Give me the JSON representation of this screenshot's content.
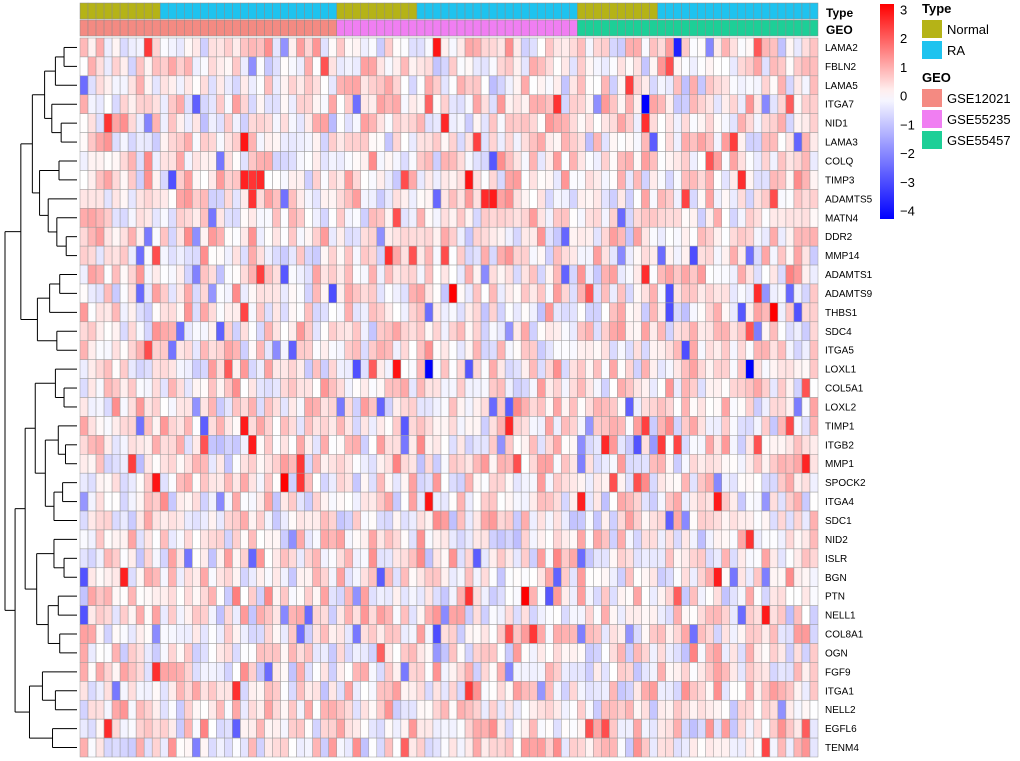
{
  "chart_data": {
    "type": "heatmap",
    "title": "",
    "n_samples": 92,
    "rows": [
      "LAMA2",
      "FBLN2",
      "LAMA5",
      "ITGA7",
      "NID1",
      "LAMA3",
      "COLQ",
      "TIMP3",
      "ADAMTS5",
      "MATN4",
      "DDR2",
      "MMP14",
      "ADAMTS1",
      "ADAMTS9",
      "THBS1",
      "SDC4",
      "ITGA5",
      "LOXL1",
      "COL5A1",
      "LOXL2",
      "TIMP1",
      "ITGB2",
      "MMP1",
      "SPOCK2",
      "ITGA4",
      "SDC1",
      "NID2",
      "ISLR",
      "BGN",
      "PTN",
      "NELL1",
      "COL8A1",
      "OGN",
      "FGF9",
      "ITGA1",
      "NELL2",
      "EGFL6",
      "TENM4"
    ],
    "annotations": {
      "type": {
        "title": "Type",
        "segments": [
          {
            "label": "Normal",
            "count": 10
          },
          {
            "label": "RA",
            "count": 22
          },
          {
            "label": "Normal",
            "count": 10
          },
          {
            "label": "RA",
            "count": 20
          },
          {
            "label": "Normal",
            "count": 10
          },
          {
            "label": "RA",
            "count": 20
          }
        ]
      },
      "geo": {
        "title": "GEO",
        "segments": [
          {
            "label": "GSE12021",
            "count": 32
          },
          {
            "label": "GSE55235",
            "count": 30
          },
          {
            "label": "GSE55457",
            "count": 30
          }
        ]
      }
    },
    "color_scale": {
      "min": -4,
      "max": 3,
      "ticks": [
        3,
        2,
        1,
        0,
        -1,
        -2,
        -3,
        -4
      ],
      "tick_labels": [
        "3",
        "2",
        "1",
        "0",
        "−1",
        "−2",
        "−3",
        "−4"
      ],
      "low_color": "#0000ff",
      "mid_color": "#ffffff",
      "high_color": "#ff0000"
    },
    "legends": {
      "type": {
        "title": "Type",
        "items": [
          {
            "label": "Normal",
            "color": "#b5b317"
          },
          {
            "label": "RA",
            "color": "#1ec3ef"
          }
        ]
      },
      "geo": {
        "title": "GEO",
        "items": [
          {
            "label": "GSE12021",
            "color": "#f48a82"
          },
          {
            "label": "GSE55235",
            "color": "#f07ef2"
          },
          {
            "label": "GSE55457",
            "color": "#1dcf97"
          }
        ]
      }
    },
    "dendrogram": "hierarchical clustering of rows (genes)",
    "notable_values": [
      {
        "row": "ITGA7",
        "sample": 14,
        "value": -2.5
      },
      {
        "row": "LAMA2",
        "sample": 74,
        "value": -3.5
      },
      {
        "row": "ITGA7",
        "sample": 70,
        "value": -4.0
      },
      {
        "row": "LOXL1",
        "sample": 43,
        "value": -4.0
      },
      {
        "row": "LOXL1",
        "sample": 83,
        "value": -4.0
      },
      {
        "row": "ADAMTS9",
        "sample": 46,
        "value": 3.0
      },
      {
        "row": "THBS1",
        "sample": 86,
        "value": 3.0
      },
      {
        "row": "SPOCK2",
        "sample": 25,
        "value": 3.0
      },
      {
        "row": "PTN",
        "sample": 55,
        "value": 3.0
      }
    ]
  }
}
